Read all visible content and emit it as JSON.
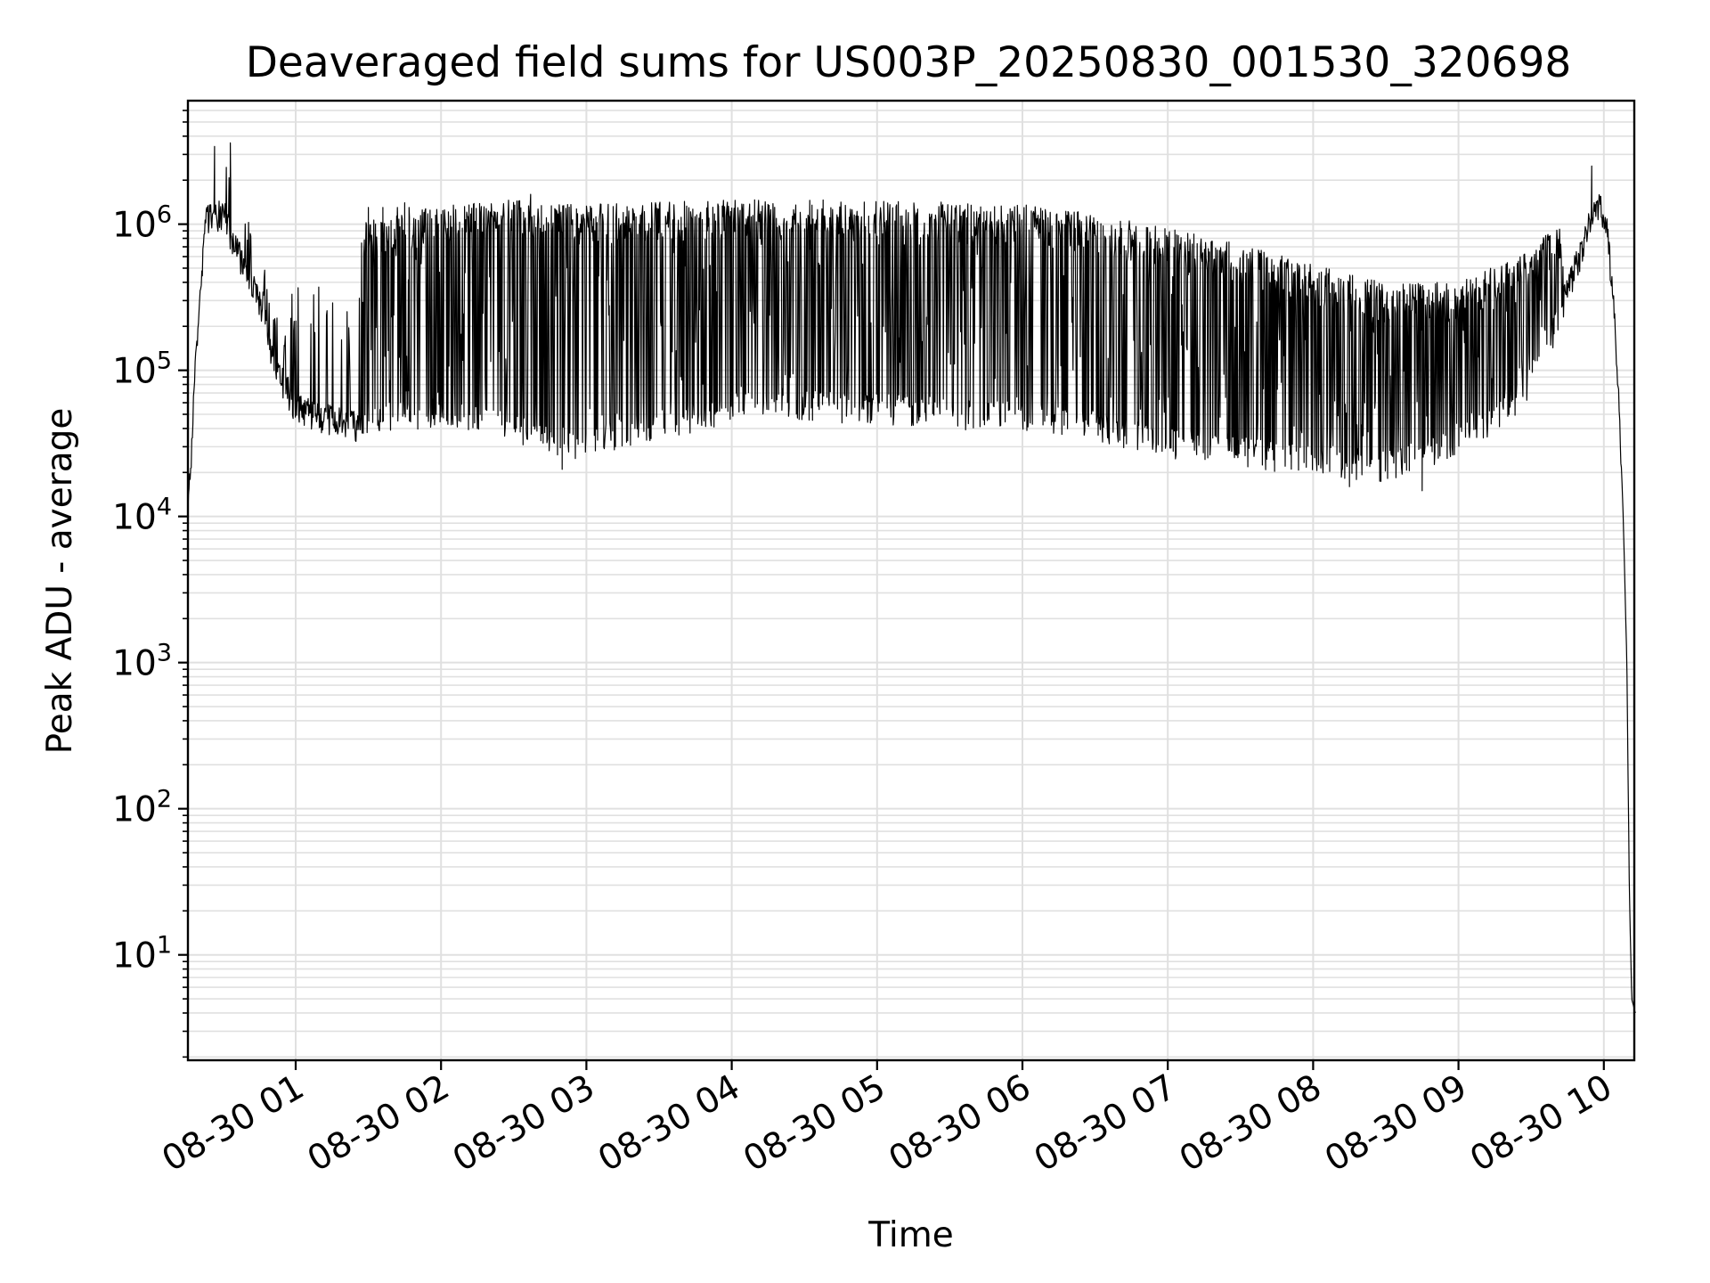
{
  "chart_data": {
    "type": "line",
    "title": "Deaveraged field sums for US003P_20250830_001530_320698",
    "xlabel": "Time",
    "ylabel": "Peak ADU - average",
    "xscale": "time",
    "yscale": "log",
    "xlim": [
      "2025-08-30 00:15:30",
      "2025-08-30 10:13:00"
    ],
    "ylim": [
      1.9,
      7000000
    ],
    "grid": true,
    "x_tick_labels": [
      "08-30 01",
      "08-30 02",
      "08-30 03",
      "08-30 04",
      "08-30 05",
      "08-30 06",
      "08-30 07",
      "08-30 08",
      "08-30 09",
      "08-30 10"
    ],
    "y_tick_exponents": [
      "1",
      "2",
      "3",
      "4",
      "5",
      "6"
    ],
    "y_tick_base": "10",
    "line_color": "#000000",
    "grid_color": "#e0e0e0",
    "series": [
      {
        "baseline": [
          [
            "00:15:30",
            10000
          ],
          [
            "00:17:00",
            30000
          ],
          [
            "00:18:30",
            100000
          ],
          [
            "00:20:30",
            300000
          ],
          [
            "00:22:30",
            1000000
          ],
          [
            "00:25:00",
            1200000
          ],
          [
            "00:30:00",
            1100000
          ],
          [
            "00:35:00",
            700000
          ],
          [
            "00:40:00",
            450000
          ],
          [
            "00:45:00",
            280000
          ],
          [
            "00:50:00",
            130000
          ],
          [
            "00:55:00",
            70000
          ],
          [
            "01:00:00",
            55000
          ],
          [
            "01:10:00",
            47000
          ],
          [
            "01:20:00",
            43000
          ],
          [
            "01:30:00",
            40000
          ],
          [
            "01:45:00",
            48000
          ],
          [
            "02:00:00",
            50000
          ],
          [
            "02:15:00",
            48000
          ],
          [
            "02:30:00",
            40000
          ],
          [
            "02:45:00",
            33000
          ],
          [
            "03:00:00",
            31000
          ],
          [
            "03:15:00",
            38000
          ],
          [
            "03:30:00",
            42000
          ],
          [
            "04:00:00",
            55000
          ],
          [
            "04:30:00",
            57000
          ],
          [
            "05:00:00",
            55000
          ],
          [
            "05:30:00",
            50000
          ],
          [
            "06:00:00",
            48000
          ],
          [
            "06:30:00",
            42000
          ],
          [
            "07:00:00",
            32000
          ],
          [
            "07:30:00",
            28000
          ],
          [
            "08:00:00",
            24000
          ],
          [
            "08:30:00",
            22000
          ],
          [
            "08:45:00",
            25000
          ],
          [
            "09:00:00",
            35000
          ],
          [
            "09:15:00",
            45000
          ],
          [
            "09:30:00",
            80000
          ],
          [
            "09:40:00",
            200000
          ],
          [
            "09:50:00",
            600000
          ],
          [
            "09:55:00",
            1100000
          ],
          [
            "09:58:00",
            1300000
          ],
          [
            "10:01:00",
            1000000
          ],
          [
            "10:04:00",
            300000
          ],
          [
            "10:06:00",
            80000
          ],
          [
            "10:08:00",
            10000
          ],
          [
            "10:09:30",
            1000
          ],
          [
            "10:10:30",
            30
          ],
          [
            "10:11:30",
            5
          ],
          [
            "10:13:00",
            4
          ]
        ],
        "peak_level": [
          [
            "01:30:00",
            1000000
          ],
          [
            "02:00:00",
            1300000
          ],
          [
            "02:30:00",
            1400000
          ],
          [
            "03:00:00",
            1300000
          ],
          [
            "04:00:00",
            1400000
          ],
          [
            "05:00:00",
            1400000
          ],
          [
            "06:00:00",
            1300000
          ],
          [
            "06:30:00",
            1150000
          ],
          [
            "07:00:00",
            900000
          ],
          [
            "07:30:00",
            700000
          ],
          [
            "08:00:00",
            500000
          ],
          [
            "08:30:00",
            380000
          ],
          [
            "09:00:00",
            380000
          ],
          [
            "09:30:00",
            650000
          ],
          [
            "09:50:00",
            1300000
          ]
        ],
        "spikes": [
          [
            "00:26:30",
            3400000
          ],
          [
            "00:33:00",
            3600000
          ],
          [
            "09:55:00",
            2500000
          ],
          [
            "01:45:00",
            1400000
          ],
          [
            "02:37:00",
            1600000
          ]
        ],
        "min_level": [
          [
            "02:50:00",
            21000
          ],
          [
            "08:15:00",
            16000
          ],
          [
            "08:45:00",
            15000
          ]
        ]
      }
    ]
  }
}
